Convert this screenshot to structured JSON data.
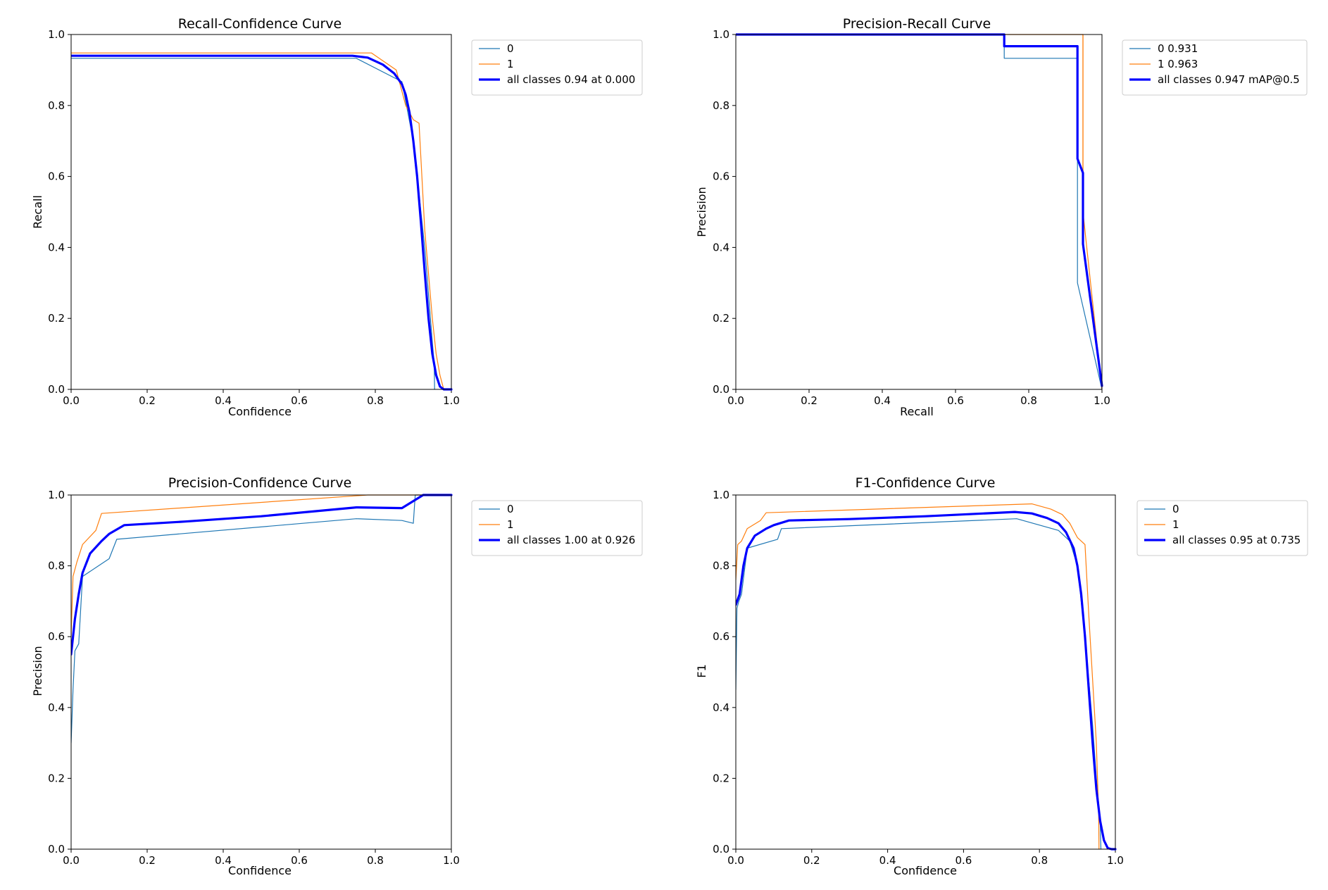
{
  "figure": {
    "background": "#ffffff"
  },
  "colors": {
    "class0": "#1f77b4",
    "class1": "#ff7f0e",
    "all": "#0000ff"
  },
  "chart_data": [
    {
      "id": "recall-confidence",
      "type": "line",
      "title": "Recall-Confidence Curve",
      "xlabel": "Confidence",
      "ylabel": "Recall",
      "xlim": [
        0,
        1
      ],
      "ylim": [
        0,
        1
      ],
      "xticks": [
        "0.0",
        "0.2",
        "0.4",
        "0.6",
        "0.8",
        "1.0"
      ],
      "yticks": [
        "0.0",
        "0.2",
        "0.4",
        "0.6",
        "0.8",
        "1.0"
      ],
      "grid": false,
      "legend_position": "outside-right",
      "series": [
        {
          "name": "0",
          "color": "#1f77b4",
          "width": 1.2,
          "x": [
            0,
            0.75,
            0.87,
            0.9,
            0.93,
            0.94,
            0.95,
            0.955,
            0.956
          ],
          "y": [
            0.933,
            0.933,
            0.867,
            0.7,
            0.4,
            0.267,
            0.133,
            0.07,
            0
          ]
        },
        {
          "name": "1",
          "color": "#ff7f0e",
          "width": 1.2,
          "x": [
            0,
            0.79,
            0.855,
            0.88,
            0.9,
            0.915,
            0.93,
            0.95,
            0.96,
            0.97,
            0.98
          ],
          "y": [
            0.948,
            0.948,
            0.9,
            0.8,
            0.76,
            0.75,
            0.45,
            0.2,
            0.1,
            0.04,
            0
          ]
        },
        {
          "name": "all classes 0.94 at 0.000",
          "color": "#0000ff",
          "width": 3.2,
          "x": [
            0,
            0.74,
            0.78,
            0.82,
            0.85,
            0.87,
            0.88,
            0.89,
            0.9,
            0.91,
            0.92,
            0.93,
            0.94,
            0.95,
            0.96,
            0.97,
            0.98,
            1.0
          ],
          "y": [
            0.94,
            0.94,
            0.935,
            0.915,
            0.89,
            0.86,
            0.83,
            0.78,
            0.7,
            0.6,
            0.47,
            0.33,
            0.2,
            0.1,
            0.04,
            0.008,
            0,
            0
          ]
        }
      ]
    },
    {
      "id": "precision-recall",
      "type": "line",
      "title": "Precision-Recall Curve",
      "xlabel": "Recall",
      "ylabel": "Precision",
      "xlim": [
        0,
        1
      ],
      "ylim": [
        0,
        1
      ],
      "xticks": [
        "0.0",
        "0.2",
        "0.4",
        "0.6",
        "0.8",
        "1.0"
      ],
      "yticks": [
        "0.0",
        "0.2",
        "0.4",
        "0.6",
        "0.8",
        "1.0"
      ],
      "grid": false,
      "legend_position": "outside-right",
      "series": [
        {
          "name": "0 0.931",
          "color": "#1f77b4",
          "width": 1.2,
          "x": [
            0,
            0.733,
            0.733,
            0.933,
            0.933,
            0.933,
            1.0
          ],
          "y": [
            1.0,
            1.0,
            0.933,
            0.933,
            0.6,
            0.3,
            0
          ]
        },
        {
          "name": "1 0.963",
          "color": "#ff7f0e",
          "width": 1.2,
          "x": [
            0,
            0.948,
            0.948,
            0.948,
            1.0
          ],
          "y": [
            1.0,
            1.0,
            1.0,
            0.5,
            0
          ]
        },
        {
          "name": "all classes 0.947 mAP@0.5",
          "color": "#0000ff",
          "width": 3.2,
          "x": [
            0,
            0.733,
            0.733,
            0.933,
            0.933,
            0.948,
            0.948,
            1.0
          ],
          "y": [
            1.0,
            1.0,
            0.967,
            0.967,
            0.65,
            0.61,
            0.41,
            0.01
          ]
        }
      ],
      "extra_lines": [
        {
          "color": "#ff7f0e",
          "x": [
            0.948,
            0.948
          ],
          "y": [
            1.0,
            0.4
          ]
        }
      ]
    },
    {
      "id": "precision-confidence",
      "type": "line",
      "title": "Precision-Confidence Curve",
      "xlabel": "Confidence",
      "ylabel": "Precision",
      "xlim": [
        0,
        1
      ],
      "ylim": [
        0,
        1
      ],
      "xticks": [
        "0.0",
        "0.2",
        "0.4",
        "0.6",
        "0.8",
        "1.0"
      ],
      "yticks": [
        "0.0",
        "0.2",
        "0.4",
        "0.6",
        "0.8",
        "1.0"
      ],
      "grid": false,
      "legend_position": "outside-right",
      "series": [
        {
          "name": "0",
          "color": "#1f77b4",
          "width": 1.2,
          "x": [
            0,
            0.005,
            0.01,
            0.02,
            0.03,
            0.1,
            0.12,
            0.75,
            0.87,
            0.9,
            0.905,
            1.0
          ],
          "y": [
            0.3,
            0.45,
            0.56,
            0.58,
            0.77,
            0.82,
            0.875,
            0.933,
            0.928,
            0.92,
            1.0,
            1.0
          ]
        },
        {
          "name": "1",
          "color": "#ff7f0e",
          "width": 1.2,
          "x": [
            0,
            0.005,
            0.015,
            0.03,
            0.065,
            0.08,
            0.78,
            1.0
          ],
          "y": [
            0.6,
            0.77,
            0.81,
            0.86,
            0.9,
            0.948,
            1.0,
            1.0
          ]
        },
        {
          "name": "all classes 1.00 at 0.926",
          "color": "#0000ff",
          "width": 3.2,
          "x": [
            0,
            0.01,
            0.02,
            0.03,
            0.05,
            0.08,
            0.1,
            0.14,
            0.3,
            0.5,
            0.75,
            0.87,
            0.926,
            1.0
          ],
          "y": [
            0.55,
            0.65,
            0.72,
            0.78,
            0.835,
            0.87,
            0.89,
            0.915,
            0.925,
            0.94,
            0.965,
            0.963,
            1.0,
            1.0
          ]
        }
      ]
    },
    {
      "id": "f1-confidence",
      "type": "line",
      "title": "F1-Confidence Curve",
      "xlabel": "Confidence",
      "ylabel": "F1",
      "xlim": [
        0,
        1
      ],
      "ylim": [
        0,
        1
      ],
      "xticks": [
        "0.0",
        "0.2",
        "0.4",
        "0.6",
        "0.8",
        "1.0"
      ],
      "yticks": [
        "0.0",
        "0.2",
        "0.4",
        "0.6",
        "0.8",
        "1.0"
      ],
      "grid": false,
      "legend_position": "outside-right",
      "series": [
        {
          "name": "0",
          "color": "#1f77b4",
          "width": 1.2,
          "x": [
            0,
            0.003,
            0.008,
            0.015,
            0.03,
            0.11,
            0.12,
            0.74,
            0.85,
            0.88,
            0.9,
            0.92,
            0.94,
            0.95,
            0.96,
            0.962
          ],
          "y": [
            0.45,
            0.68,
            0.7,
            0.72,
            0.85,
            0.875,
            0.905,
            0.933,
            0.9,
            0.87,
            0.8,
            0.6,
            0.35,
            0.2,
            0.08,
            0
          ]
        },
        {
          "name": "1",
          "color": "#ff7f0e",
          "width": 1.2,
          "x": [
            0,
            0.005,
            0.015,
            0.03,
            0.065,
            0.08,
            0.78,
            0.83,
            0.86,
            0.88,
            0.9,
            0.91,
            0.915,
            0.92,
            0.93,
            0.95,
            0.956,
            0.957
          ],
          "y": [
            0.76,
            0.86,
            0.87,
            0.905,
            0.928,
            0.95,
            0.975,
            0.96,
            0.945,
            0.92,
            0.88,
            0.87,
            0.865,
            0.86,
            0.66,
            0.3,
            0.1,
            0
          ]
        },
        {
          "name": "all classes 0.95 at 0.735",
          "color": "#0000ff",
          "width": 3.2,
          "x": [
            0,
            0.01,
            0.02,
            0.03,
            0.05,
            0.08,
            0.1,
            0.14,
            0.3,
            0.5,
            0.735,
            0.78,
            0.82,
            0.85,
            0.87,
            0.89,
            0.9,
            0.91,
            0.92,
            0.93,
            0.94,
            0.95,
            0.96,
            0.97,
            0.98,
            0.99,
            1.0
          ],
          "y": [
            0.69,
            0.72,
            0.8,
            0.85,
            0.885,
            0.905,
            0.915,
            0.928,
            0.932,
            0.94,
            0.952,
            0.948,
            0.935,
            0.92,
            0.895,
            0.85,
            0.8,
            0.72,
            0.6,
            0.45,
            0.3,
            0.17,
            0.08,
            0.025,
            0.003,
            0,
            0
          ]
        }
      ]
    }
  ]
}
